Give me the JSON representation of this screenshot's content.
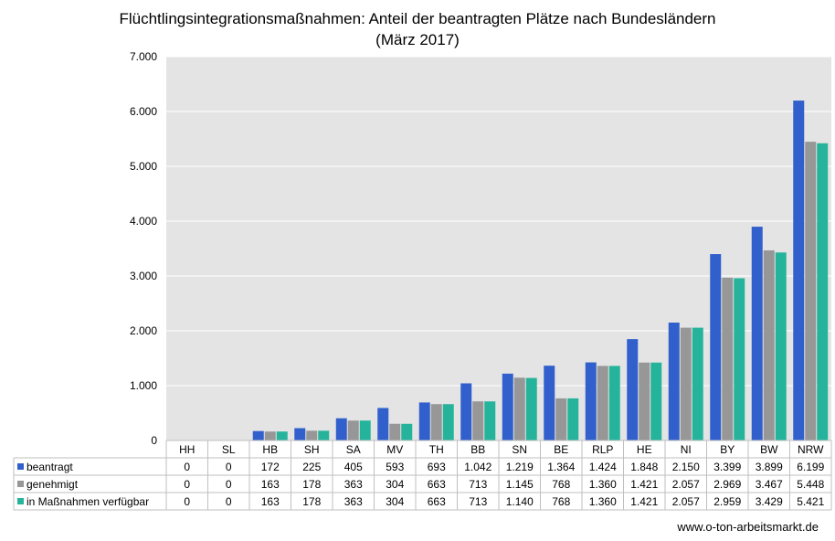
{
  "chart_data": {
    "type": "bar",
    "title": "Flüchtlingsintegrationsmaßnahmen: Anteil der beantragten Plätze nach Bundesländern",
    "subtitle": "(März 2017)",
    "categories": [
      "HH",
      "SL",
      "HB",
      "SH",
      "SA",
      "MV",
      "TH",
      "BB",
      "SN",
      "BE",
      "RLP",
      "HE",
      "NI",
      "BY",
      "BW",
      "NRW"
    ],
    "series": [
      {
        "name": "beantragt",
        "color": "#3160CC",
        "values": [
          0,
          0,
          172,
          225,
          405,
          593,
          693,
          1042,
          1219,
          1364,
          1424,
          1848,
          2150,
          3399,
          3899,
          6199
        ],
        "labels": [
          "0",
          "0",
          "172",
          "225",
          "405",
          "593",
          "693",
          "1.042",
          "1.219",
          "1.364",
          "1.424",
          "1.848",
          "2.150",
          "3.399",
          "3.899",
          "6.199"
        ]
      },
      {
        "name": "genehmigt",
        "color": "#979797",
        "values": [
          0,
          0,
          163,
          178,
          363,
          304,
          663,
          713,
          1145,
          768,
          1360,
          1421,
          2057,
          2969,
          3467,
          5448
        ],
        "labels": [
          "0",
          "0",
          "163",
          "178",
          "363",
          "304",
          "663",
          "713",
          "1.145",
          "768",
          "1.360",
          "1.421",
          "2.057",
          "2.969",
          "3.467",
          "5.448"
        ]
      },
      {
        "name": "in Maßnahmen verfügbar",
        "color": "#25B49B",
        "values": [
          0,
          0,
          163,
          178,
          363,
          304,
          663,
          713,
          1140,
          768,
          1360,
          1421,
          2057,
          2959,
          3429,
          5421
        ],
        "labels": [
          "0",
          "0",
          "163",
          "178",
          "363",
          "304",
          "663",
          "713",
          "1.140",
          "768",
          "1.360",
          "1.421",
          "2.057",
          "2.959",
          "3.429",
          "5.421"
        ]
      }
    ],
    "ylim": [
      0,
      7000
    ],
    "yticks": [
      0,
      1000,
      2000,
      3000,
      4000,
      5000,
      6000,
      7000
    ],
    "ytick_labels": [
      "0",
      "1.000",
      "2.000",
      "3.000",
      "4.000",
      "5.000",
      "6.000",
      "7.000"
    ],
    "grid": true,
    "legend": "data-table",
    "plot_background": "#E4E4E4"
  },
  "footer": "www.o-ton-arbeitsmarkt.de"
}
